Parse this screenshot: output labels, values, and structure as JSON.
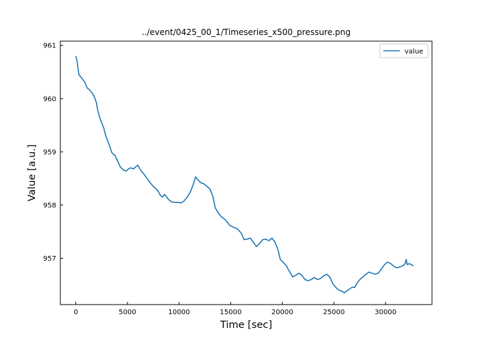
{
  "chart_data": {
    "type": "line",
    "title": "../event/0425_00_1/Timeseries_x500_pressure.png",
    "xlabel": "Time [sec]",
    "ylabel": "Value [a.u.]",
    "xlim": [
      -1500,
      34500
    ],
    "ylim": [
      956.13,
      961.08
    ],
    "xticks": [
      0,
      5000,
      10000,
      15000,
      20000,
      25000,
      30000
    ],
    "xtick_labels": [
      "0",
      "5000",
      "10000",
      "15000",
      "20000",
      "25000",
      "30000"
    ],
    "yticks": [
      957,
      958,
      959,
      960,
      961
    ],
    "ytick_labels": [
      "957",
      "958",
      "959",
      "960",
      "961"
    ],
    "grid": false,
    "legend_position": "top-right",
    "series": [
      {
        "name": "value",
        "color": "#1f77b4",
        "x": [
          0,
          100,
          300,
          600,
          900,
          1100,
          1300,
          1600,
          1800,
          2000,
          2100,
          2300,
          2500,
          2700,
          2900,
          3200,
          3500,
          3800,
          4000,
          4300,
          4600,
          4900,
          5100,
          5300,
          5600,
          5800,
          6000,
          6300,
          6600,
          6900,
          7200,
          7500,
          7800,
          8000,
          8200,
          8400,
          8600,
          8800,
          9000,
          9300,
          9600,
          9900,
          10200,
          10500,
          10800,
          11100,
          11400,
          11600,
          11800,
          12100,
          12400,
          12700,
          13000,
          13300,
          13500,
          13800,
          14100,
          14500,
          14900,
          15300,
          15600,
          16000,
          16300,
          16600,
          16900,
          17200,
          17500,
          17800,
          18100,
          18400,
          18700,
          19000,
          19300,
          19600,
          19800,
          20100,
          20400,
          20600,
          20800,
          21000,
          21300,
          21600,
          21900,
          22200,
          22500,
          22800,
          23100,
          23400,
          23700,
          24000,
          24300,
          24600,
          24900,
          25200,
          25500,
          25800,
          26000,
          26200,
          26500,
          26800,
          27000,
          27200,
          27500,
          27800,
          28100,
          28400,
          28700,
          29000,
          29300,
          29600,
          29900,
          30200,
          30500,
          30800,
          31100,
          31400,
          31700,
          31900,
          32000,
          32100,
          32300,
          32500,
          32700
        ],
        "y": [
          960.8,
          960.72,
          960.45,
          960.38,
          960.3,
          960.2,
          960.17,
          960.1,
          960.03,
          959.92,
          959.8,
          959.65,
          959.55,
          959.45,
          959.3,
          959.15,
          958.98,
          958.93,
          958.85,
          958.72,
          958.66,
          958.64,
          958.68,
          958.7,
          958.68,
          958.72,
          958.75,
          958.65,
          958.58,
          958.5,
          958.42,
          958.35,
          958.3,
          958.25,
          958.18,
          958.15,
          958.2,
          958.15,
          958.1,
          958.06,
          958.05,
          958.05,
          958.04,
          958.08,
          958.15,
          958.25,
          958.4,
          958.53,
          958.48,
          958.42,
          958.4,
          958.35,
          958.3,
          958.15,
          957.95,
          957.85,
          957.78,
          957.72,
          957.62,
          957.58,
          957.56,
          957.48,
          957.35,
          957.36,
          957.38,
          957.3,
          957.22,
          957.28,
          957.35,
          957.36,
          957.33,
          957.38,
          957.3,
          957.15,
          956.98,
          956.92,
          956.86,
          956.78,
          956.72,
          956.65,
          956.68,
          956.72,
          956.68,
          956.6,
          956.58,
          956.6,
          956.64,
          956.6,
          956.62,
          956.67,
          956.7,
          956.65,
          956.52,
          956.45,
          956.4,
          956.38,
          956.35,
          956.38,
          956.42,
          956.46,
          956.45,
          956.52,
          956.6,
          956.65,
          956.7,
          956.74,
          956.72,
          956.7,
          956.72,
          956.8,
          956.88,
          956.93,
          956.9,
          956.85,
          956.82,
          956.84,
          956.86,
          956.9,
          956.98,
          956.88,
          956.9,
          956.88,
          956.86
        ]
      }
    ]
  }
}
